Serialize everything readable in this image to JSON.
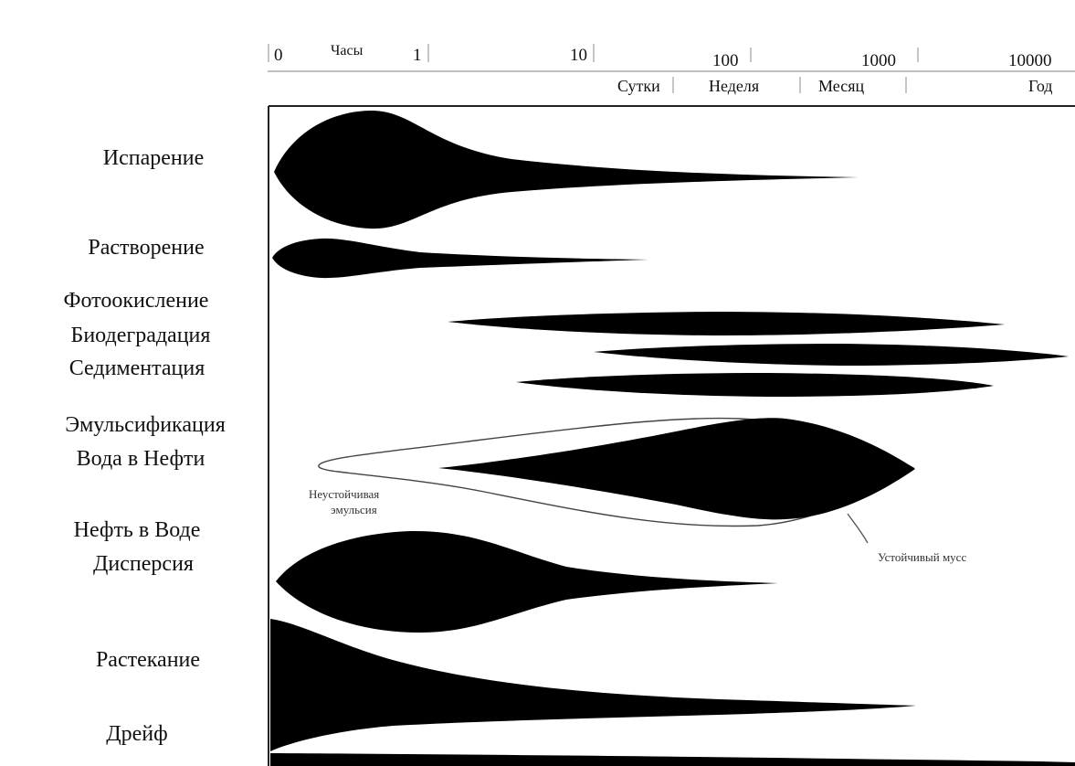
{
  "axis": {
    "hours_label": "Часы",
    "ticks": [
      "0",
      "1",
      "10",
      "100",
      "1000",
      "10000"
    ],
    "periods": [
      "Сутки",
      "Неделя",
      "Месяц",
      "Год"
    ]
  },
  "processes": {
    "evaporation": "Испарение",
    "dissolution": "Растворение",
    "photooxidation": "Фотоокисление",
    "biodegradation": "Биодеградация",
    "sedimentation": "Седиментация",
    "emulsification_1": "Эмульсификация",
    "emulsification_2": "Вода в Нефти",
    "dispersion_1": "Нефть в Воде",
    "dispersion_2": "Дисперсия",
    "spreading": "Растекание",
    "drift": "Дрейф"
  },
  "annotations": {
    "unstable_1": "Неустойчивая",
    "unstable_2": "эмульсия",
    "stable": "Устойчивый мусс"
  }
}
